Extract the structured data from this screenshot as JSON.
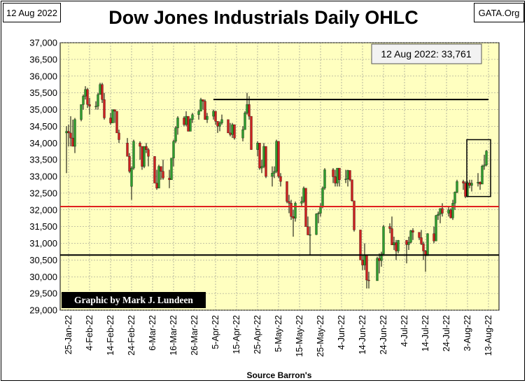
{
  "header": {
    "date_label": "12 Aug 2022",
    "source_label": "GATA.Org",
    "title": "Dow Jones Industrials Daily OHLC"
  },
  "chart_data": {
    "type": "ohlc",
    "title": "Dow Jones Industrials Daily OHLC",
    "xlabel": "Source Barron's",
    "ylabel": "",
    "ylim": [
      29000,
      37000
    ],
    "y_ticks": [
      "37,000",
      "36,500",
      "36,000",
      "35,500",
      "35,000",
      "34,500",
      "34,000",
      "33,500",
      "33,000",
      "32,500",
      "32,000",
      "31,500",
      "31,000",
      "30,500",
      "30,000",
      "29,500",
      "29,000"
    ],
    "x_ticks": [
      "25-Jan-22",
      "4-Feb-22",
      "14-Feb-22",
      "24-Feb-22",
      "6-Mar-22",
      "16-Mar-22",
      "26-Mar-22",
      "5-Apr-22",
      "15-Apr-22",
      "25-Apr-22",
      "5-May-22",
      "15-May-22",
      "25-May-22",
      "4-Jun-22",
      "14-Jun-22",
      "24-Jun-22",
      "4-Jul-22",
      "14-Jul-22",
      "24-Jul-22",
      "3-Aug-22",
      "13-Aug-22"
    ],
    "annotation": "12 Aug 2022: 33,761",
    "credit": "Graphic by Mark J. Lundeen",
    "grid": true,
    "colors": {
      "plot_bg": "#ffffc0",
      "up": "#2e9c2e",
      "down": "#cc2020",
      "red_line": "#e02020",
      "black_line": "#000000"
    },
    "reference_lines": [
      {
        "color": "black",
        "x_start": "4-Apr-22",
        "x_end": "13-Aug-22",
        "y": 35300
      },
      {
        "color": "red",
        "y": 32100
      },
      {
        "color": "black",
        "y": 30650
      }
    ],
    "highlight_box": {
      "x_start": "2-Aug-22",
      "x_end": "12-Aug-22",
      "y_low": 32400,
      "y_high": 34100
    },
    "ohlc": [
      {
        "date": "2022-01-24",
        "o": 34300,
        "h": 34500,
        "l": 33100,
        "c": 34350
      },
      {
        "date": "2022-01-25",
        "o": 34350,
        "h": 34550,
        "l": 33900,
        "c": 34300
      },
      {
        "date": "2022-01-26",
        "o": 34300,
        "h": 34800,
        "l": 33900,
        "c": 34150
      },
      {
        "date": "2022-01-27",
        "o": 34150,
        "h": 34700,
        "l": 33900,
        "c": 33900
      },
      {
        "date": "2022-01-28",
        "o": 33900,
        "h": 34750,
        "l": 33700,
        "c": 34700
      },
      {
        "date": "2022-01-31",
        "o": 34700,
        "h": 35150,
        "l": 34650,
        "c": 35150
      },
      {
        "date": "2022-02-01",
        "o": 35150,
        "h": 35450,
        "l": 35000,
        "c": 35400
      },
      {
        "date": "2022-02-02",
        "o": 35400,
        "h": 35700,
        "l": 35300,
        "c": 35600
      },
      {
        "date": "2022-02-03",
        "o": 35600,
        "h": 35650,
        "l": 35050,
        "c": 35150
      },
      {
        "date": "2022-02-04",
        "o": 35150,
        "h": 35350,
        "l": 34850,
        "c": 35100
      },
      {
        "date": "2022-02-07",
        "o": 35100,
        "h": 35250,
        "l": 35000,
        "c": 35100
      },
      {
        "date": "2022-02-08",
        "o": 35100,
        "h": 35500,
        "l": 35000,
        "c": 35450
      },
      {
        "date": "2022-02-09",
        "o": 35450,
        "h": 35800,
        "l": 35450,
        "c": 35750
      },
      {
        "date": "2022-02-10",
        "o": 35750,
        "h": 35800,
        "l": 35200,
        "c": 35300
      },
      {
        "date": "2022-02-11",
        "o": 35300,
        "h": 35500,
        "l": 34700,
        "c": 34750
      },
      {
        "date": "2022-02-14",
        "o": 34750,
        "h": 34900,
        "l": 34550,
        "c": 34600
      },
      {
        "date": "2022-02-15",
        "o": 34600,
        "h": 35000,
        "l": 34600,
        "c": 35000
      },
      {
        "date": "2022-02-16",
        "o": 35000,
        "h": 35000,
        "l": 34600,
        "c": 34950
      },
      {
        "date": "2022-02-17",
        "o": 34950,
        "h": 34950,
        "l": 34300,
        "c": 34300
      },
      {
        "date": "2022-02-18",
        "o": 34300,
        "h": 34400,
        "l": 34000,
        "c": 34100
      },
      {
        "date": "2022-02-22",
        "o": 34000,
        "h": 34150,
        "l": 33600,
        "c": 33600
      },
      {
        "date": "2022-02-23",
        "o": 33600,
        "h": 33700,
        "l": 33100,
        "c": 33150
      },
      {
        "date": "2022-02-24",
        "o": 32700,
        "h": 33300,
        "l": 32300,
        "c": 33250
      },
      {
        "date": "2022-02-25",
        "o": 33250,
        "h": 34100,
        "l": 33200,
        "c": 34050
      },
      {
        "date": "2022-02-28",
        "o": 34000,
        "h": 34050,
        "l": 33500,
        "c": 33900
      },
      {
        "date": "2022-03-01",
        "o": 33900,
        "h": 33900,
        "l": 33200,
        "c": 33300
      },
      {
        "date": "2022-03-02",
        "o": 33300,
        "h": 33900,
        "l": 33250,
        "c": 33900
      },
      {
        "date": "2022-03-03",
        "o": 33900,
        "h": 34000,
        "l": 33700,
        "c": 33800
      },
      {
        "date": "2022-03-04",
        "o": 33800,
        "h": 33850,
        "l": 33300,
        "c": 33600
      },
      {
        "date": "2022-03-07",
        "o": 33600,
        "h": 33600,
        "l": 32800,
        "c": 32800
      },
      {
        "date": "2022-03-08",
        "o": 32800,
        "h": 33200,
        "l": 32600,
        "c": 32650
      },
      {
        "date": "2022-03-09",
        "o": 32650,
        "h": 33350,
        "l": 32650,
        "c": 33300
      },
      {
        "date": "2022-03-10",
        "o": 33300,
        "h": 33300,
        "l": 32900,
        "c": 33150
      },
      {
        "date": "2022-03-11",
        "o": 33150,
        "h": 33500,
        "l": 32900,
        "c": 32950
      },
      {
        "date": "2022-03-14",
        "o": 32950,
        "h": 33200,
        "l": 32650,
        "c": 32900
      },
      {
        "date": "2022-03-15",
        "o": 32900,
        "h": 33550,
        "l": 32900,
        "c": 33550
      },
      {
        "date": "2022-03-16",
        "o": 33550,
        "h": 34100,
        "l": 33300,
        "c": 34050
      },
      {
        "date": "2022-03-17",
        "o": 34050,
        "h": 34500,
        "l": 34000,
        "c": 34450
      },
      {
        "date": "2022-03-18",
        "o": 34450,
        "h": 34800,
        "l": 34250,
        "c": 34750
      },
      {
        "date": "2022-03-21",
        "o": 34750,
        "h": 34800,
        "l": 34500,
        "c": 34550
      },
      {
        "date": "2022-03-22",
        "o": 34550,
        "h": 34950,
        "l": 34500,
        "c": 34800
      },
      {
        "date": "2022-03-23",
        "o": 34800,
        "h": 34800,
        "l": 34350,
        "c": 34350
      },
      {
        "date": "2022-03-24",
        "o": 34350,
        "h": 34750,
        "l": 34350,
        "c": 34700
      },
      {
        "date": "2022-03-25",
        "o": 34700,
        "h": 34900,
        "l": 34600,
        "c": 34850
      },
      {
        "date": "2022-03-28",
        "o": 34850,
        "h": 35000,
        "l": 34700,
        "c": 34950
      },
      {
        "date": "2022-03-29",
        "o": 34950,
        "h": 35350,
        "l": 34950,
        "c": 35300
      },
      {
        "date": "2022-03-30",
        "o": 35300,
        "h": 35300,
        "l": 35000,
        "c": 35250
      },
      {
        "date": "2022-03-31",
        "o": 35250,
        "h": 35300,
        "l": 34700,
        "c": 34700
      },
      {
        "date": "2022-04-01",
        "o": 34700,
        "h": 34900,
        "l": 34600,
        "c": 34800
      },
      {
        "date": "2022-04-04",
        "o": 34800,
        "h": 35000,
        "l": 34700,
        "c": 34950
      },
      {
        "date": "2022-04-05",
        "o": 34950,
        "h": 34950,
        "l": 34550,
        "c": 34650
      },
      {
        "date": "2022-04-06",
        "o": 34650,
        "h": 34650,
        "l": 34300,
        "c": 34500
      },
      {
        "date": "2022-04-07",
        "o": 34500,
        "h": 34650,
        "l": 34350,
        "c": 34600
      },
      {
        "date": "2022-04-08",
        "o": 34600,
        "h": 34850,
        "l": 34550,
        "c": 34700
      },
      {
        "date": "2022-04-11",
        "o": 34700,
        "h": 34700,
        "l": 34300,
        "c": 34300
      },
      {
        "date": "2022-04-12",
        "o": 34300,
        "h": 34600,
        "l": 34200,
        "c": 34250
      },
      {
        "date": "2022-04-13",
        "o": 34250,
        "h": 34600,
        "l": 34150,
        "c": 34550
      },
      {
        "date": "2022-04-14",
        "o": 34550,
        "h": 34550,
        "l": 34100,
        "c": 34150
      },
      {
        "date": "2022-04-18",
        "o": 34150,
        "h": 34500,
        "l": 34050,
        "c": 34400
      },
      {
        "date": "2022-04-19",
        "o": 34400,
        "h": 34950,
        "l": 34400,
        "c": 34900
      },
      {
        "date": "2022-04-20",
        "o": 34900,
        "h": 35500,
        "l": 34850,
        "c": 35150
      },
      {
        "date": "2022-04-21",
        "o": 35150,
        "h": 35400,
        "l": 34700,
        "c": 34800
      },
      {
        "date": "2022-04-22",
        "o": 34800,
        "h": 34800,
        "l": 33800,
        "c": 33800
      },
      {
        "date": "2022-04-25",
        "o": 33800,
        "h": 34050,
        "l": 33600,
        "c": 34000
      },
      {
        "date": "2022-04-26",
        "o": 34000,
        "h": 34000,
        "l": 33200,
        "c": 33250
      },
      {
        "date": "2022-04-27",
        "o": 33250,
        "h": 33500,
        "l": 33100,
        "c": 33300
      },
      {
        "date": "2022-04-28",
        "o": 33300,
        "h": 34000,
        "l": 33250,
        "c": 33900
      },
      {
        "date": "2022-04-29",
        "o": 33900,
        "h": 33900,
        "l": 32950,
        "c": 33000
      },
      {
        "date": "2022-05-02",
        "o": 33000,
        "h": 33300,
        "l": 32700,
        "c": 33100
      },
      {
        "date": "2022-05-03",
        "o": 33100,
        "h": 33300,
        "l": 32950,
        "c": 33150
      },
      {
        "date": "2022-05-04",
        "o": 33150,
        "h": 34100,
        "l": 33100,
        "c": 34050
      },
      {
        "date": "2022-05-05",
        "o": 34050,
        "h": 34050,
        "l": 32950,
        "c": 33000
      },
      {
        "date": "2022-05-06",
        "o": 33000,
        "h": 33100,
        "l": 32700,
        "c": 32850
      },
      {
        "date": "2022-05-09",
        "o": 32850,
        "h": 32850,
        "l": 32200,
        "c": 32250
      },
      {
        "date": "2022-05-10",
        "o": 32250,
        "h": 32450,
        "l": 31900,
        "c": 32200
      },
      {
        "date": "2022-05-11",
        "o": 32200,
        "h": 32300,
        "l": 31700,
        "c": 31800
      },
      {
        "date": "2022-05-12",
        "o": 31800,
        "h": 32000,
        "l": 31200,
        "c": 31750
      },
      {
        "date": "2022-05-13",
        "o": 31750,
        "h": 32250,
        "l": 31650,
        "c": 32200
      },
      {
        "date": "2022-05-16",
        "o": 32200,
        "h": 32400,
        "l": 32100,
        "c": 32250
      },
      {
        "date": "2022-05-17",
        "o": 32250,
        "h": 32700,
        "l": 32200,
        "c": 32650
      },
      {
        "date": "2022-05-18",
        "o": 32650,
        "h": 32650,
        "l": 31500,
        "c": 31500
      },
      {
        "date": "2022-05-19",
        "o": 31500,
        "h": 31800,
        "l": 31250,
        "c": 31250
      },
      {
        "date": "2022-05-20",
        "o": 31250,
        "h": 31500,
        "l": 30650,
        "c": 31260
      },
      {
        "date": "2022-05-23",
        "o": 31260,
        "h": 31900,
        "l": 31250,
        "c": 31880
      },
      {
        "date": "2022-05-24",
        "o": 31880,
        "h": 31950,
        "l": 31600,
        "c": 31900
      },
      {
        "date": "2022-05-25",
        "o": 31900,
        "h": 32200,
        "l": 31800,
        "c": 32100
      },
      {
        "date": "2022-05-26",
        "o": 32100,
        "h": 32700,
        "l": 32050,
        "c": 32650
      },
      {
        "date": "2022-05-27",
        "o": 32650,
        "h": 33250,
        "l": 32600,
        "c": 33200
      },
      {
        "date": "2022-05-31",
        "o": 33200,
        "h": 33250,
        "l": 32800,
        "c": 32990
      },
      {
        "date": "2022-06-01",
        "o": 32990,
        "h": 33200,
        "l": 32700,
        "c": 32800
      },
      {
        "date": "2022-06-02",
        "o": 32800,
        "h": 33250,
        "l": 32700,
        "c": 33250
      },
      {
        "date": "2022-06-03",
        "o": 33250,
        "h": 33250,
        "l": 32700,
        "c": 32900
      },
      {
        "date": "2022-06-06",
        "o": 32900,
        "h": 33200,
        "l": 32800,
        "c": 32920
      },
      {
        "date": "2022-06-07",
        "o": 32920,
        "h": 33200,
        "l": 32700,
        "c": 33180
      },
      {
        "date": "2022-06-08",
        "o": 33180,
        "h": 33180,
        "l": 32850,
        "c": 32900
      },
      {
        "date": "2022-06-09",
        "o": 32900,
        "h": 32900,
        "l": 32250,
        "c": 32270
      },
      {
        "date": "2022-06-10",
        "o": 32270,
        "h": 32270,
        "l": 31350,
        "c": 31400
      },
      {
        "date": "2022-06-13",
        "o": 31400,
        "h": 31400,
        "l": 30500,
        "c": 30500
      },
      {
        "date": "2022-06-14",
        "o": 30500,
        "h": 30650,
        "l": 30200,
        "c": 30350
      },
      {
        "date": "2022-06-15",
        "o": 30350,
        "h": 31000,
        "l": 30200,
        "c": 30650
      },
      {
        "date": "2022-06-16",
        "o": 30650,
        "h": 30650,
        "l": 29650,
        "c": 29900
      },
      {
        "date": "2022-06-17",
        "o": 29900,
        "h": 30150,
        "l": 29650,
        "c": 29880
      },
      {
        "date": "2022-06-21",
        "o": 29880,
        "h": 30600,
        "l": 29880,
        "c": 30550
      },
      {
        "date": "2022-06-22",
        "o": 30550,
        "h": 30700,
        "l": 30100,
        "c": 30480
      },
      {
        "date": "2022-06-23",
        "o": 30480,
        "h": 30750,
        "l": 30300,
        "c": 30680
      },
      {
        "date": "2022-06-24",
        "o": 30680,
        "h": 31550,
        "l": 30650,
        "c": 31500
      },
      {
        "date": "2022-06-27",
        "o": 31500,
        "h": 31600,
        "l": 31300,
        "c": 31440
      },
      {
        "date": "2022-06-28",
        "o": 31440,
        "h": 31800,
        "l": 30950,
        "c": 30950
      },
      {
        "date": "2022-06-29",
        "o": 30950,
        "h": 31200,
        "l": 30800,
        "c": 31020
      },
      {
        "date": "2022-06-30",
        "o": 31020,
        "h": 31100,
        "l": 30500,
        "c": 30770
      },
      {
        "date": "2022-07-01",
        "o": 30770,
        "h": 31100,
        "l": 30700,
        "c": 31090
      },
      {
        "date": "2022-07-05",
        "o": 31090,
        "h": 31100,
        "l": 30400,
        "c": 30960
      },
      {
        "date": "2022-07-06",
        "o": 30960,
        "h": 31200,
        "l": 30800,
        "c": 31030
      },
      {
        "date": "2022-07-07",
        "o": 31030,
        "h": 31400,
        "l": 31000,
        "c": 31380
      },
      {
        "date": "2022-07-08",
        "o": 31380,
        "h": 31450,
        "l": 31100,
        "c": 31330
      },
      {
        "date": "2022-07-11",
        "o": 31330,
        "h": 31330,
        "l": 31100,
        "c": 31170
      },
      {
        "date": "2022-07-12",
        "o": 31170,
        "h": 31400,
        "l": 30950,
        "c": 30980
      },
      {
        "date": "2022-07-13",
        "o": 30980,
        "h": 31050,
        "l": 30500,
        "c": 30770
      },
      {
        "date": "2022-07-14",
        "o": 30770,
        "h": 30800,
        "l": 30150,
        "c": 30630
      },
      {
        "date": "2022-07-15",
        "o": 30630,
        "h": 31300,
        "l": 30630,
        "c": 31290
      },
      {
        "date": "2022-07-18",
        "o": 31290,
        "h": 31500,
        "l": 31000,
        "c": 31070
      },
      {
        "date": "2022-07-19",
        "o": 31070,
        "h": 31850,
        "l": 31070,
        "c": 31830
      },
      {
        "date": "2022-07-20",
        "o": 31830,
        "h": 31950,
        "l": 31700,
        "c": 31870
      },
      {
        "date": "2022-07-21",
        "o": 31870,
        "h": 32050,
        "l": 31600,
        "c": 32040
      },
      {
        "date": "2022-07-22",
        "o": 32040,
        "h": 32200,
        "l": 31800,
        "c": 31900
      },
      {
        "date": "2022-07-25",
        "o": 31900,
        "h": 32100,
        "l": 31800,
        "c": 32000
      },
      {
        "date": "2022-07-26",
        "o": 32000,
        "h": 32050,
        "l": 31750,
        "c": 31760
      },
      {
        "date": "2022-07-27",
        "o": 31760,
        "h": 32300,
        "l": 31700,
        "c": 32200
      },
      {
        "date": "2022-07-28",
        "o": 32200,
        "h": 32550,
        "l": 32000,
        "c": 32530
      },
      {
        "date": "2022-07-29",
        "o": 32530,
        "h": 32900,
        "l": 32500,
        "c": 32850
      },
      {
        "date": "2022-08-01",
        "o": 32850,
        "h": 32900,
        "l": 32600,
        "c": 32800
      },
      {
        "date": "2022-08-02",
        "o": 32800,
        "h": 32850,
        "l": 32350,
        "c": 32400
      },
      {
        "date": "2022-08-03",
        "o": 32400,
        "h": 32850,
        "l": 32400,
        "c": 32810
      },
      {
        "date": "2022-08-04",
        "o": 32810,
        "h": 32900,
        "l": 32650,
        "c": 32730
      },
      {
        "date": "2022-08-05",
        "o": 32730,
        "h": 32900,
        "l": 32550,
        "c": 32800
      },
      {
        "date": "2022-08-08",
        "o": 32800,
        "h": 33100,
        "l": 32700,
        "c": 32830
      },
      {
        "date": "2022-08-09",
        "o": 32830,
        "h": 32850,
        "l": 32600,
        "c": 32770
      },
      {
        "date": "2022-08-10",
        "o": 32770,
        "h": 33350,
        "l": 32770,
        "c": 33310
      },
      {
        "date": "2022-08-11",
        "o": 33310,
        "h": 33650,
        "l": 33200,
        "c": 33340
      },
      {
        "date": "2022-08-12",
        "o": 33340,
        "h": 33790,
        "l": 33300,
        "c": 33761
      }
    ]
  }
}
